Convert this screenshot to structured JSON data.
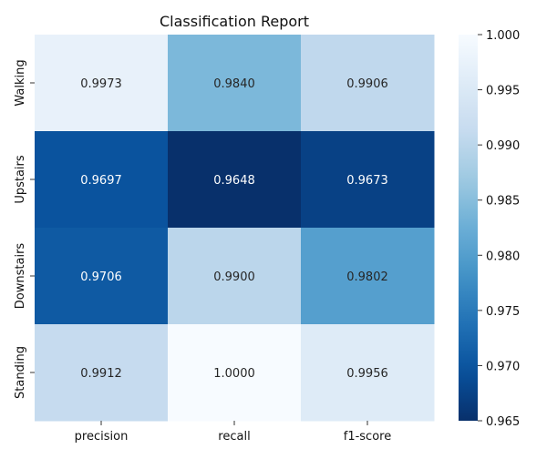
{
  "chart_data": {
    "type": "heatmap",
    "title": "Classification Report",
    "xlabel": "",
    "ylabel": "",
    "columns": [
      "precision",
      "recall",
      "f1-score"
    ],
    "rows": [
      "Walking",
      "Upstairs",
      "Downstairs",
      "Standing"
    ],
    "values": [
      [
        0.9973,
        0.984,
        0.9906
      ],
      [
        0.9697,
        0.9648,
        0.9673
      ],
      [
        0.9706,
        0.99,
        0.9802
      ],
      [
        0.9912,
        1.0,
        0.9956
      ]
    ],
    "labels": [
      [
        "0.9973",
        "0.9840",
        "0.9906"
      ],
      [
        "0.9697",
        "0.9648",
        "0.9673"
      ],
      [
        "0.9706",
        "0.9900",
        "0.9802"
      ],
      [
        "0.9912",
        "1.0000",
        "0.9956"
      ]
    ],
    "colormap": "Blues",
    "colorbar": {
      "vmin": 0.965,
      "vmax": 1.0,
      "ticks": [
        0.965,
        0.97,
        0.975,
        0.98,
        0.985,
        0.99,
        0.995,
        1.0
      ],
      "tick_labels": [
        "0.965",
        "0.970",
        "0.975",
        "0.980",
        "0.985",
        "0.990",
        "0.995",
        "1.000"
      ]
    },
    "grid": false
  }
}
